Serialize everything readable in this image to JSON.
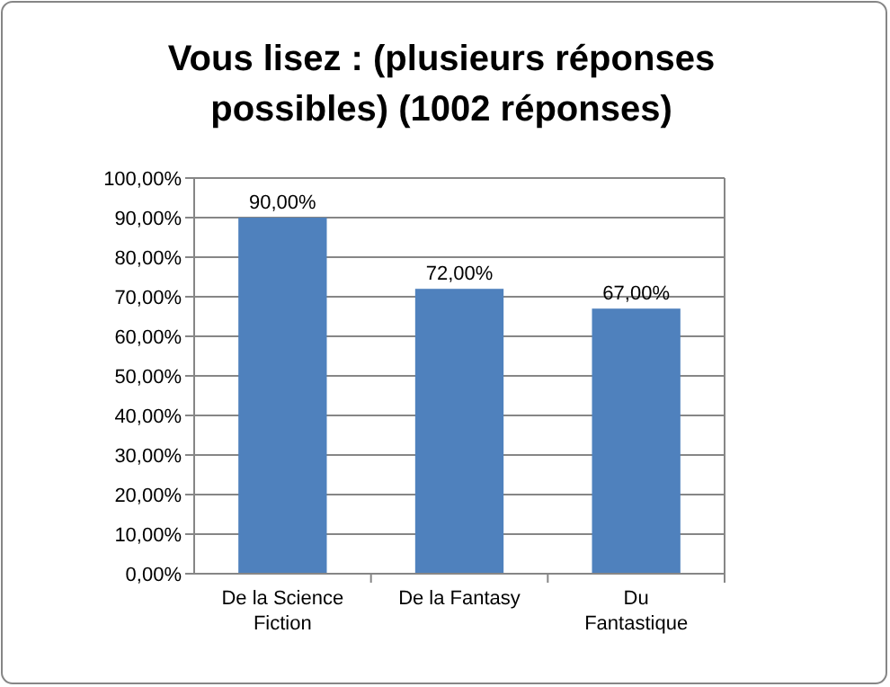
{
  "chart_data": {
    "type": "bar",
    "title": "Vous lisez : (plusieurs réponses possibles) (1002 réponses)",
    "categories": [
      "De la Science Fiction",
      "De la Fantasy",
      "Du Fantastique"
    ],
    "values": [
      90,
      72,
      67
    ],
    "value_labels": [
      "90,00%",
      "72,00%",
      "67,00%"
    ],
    "color": "#4f81bd",
    "ylim": [
      0,
      100
    ],
    "yticks": [
      {
        "value": 0,
        "label": "0,00%"
      },
      {
        "value": 10,
        "label": "10,00%"
      },
      {
        "value": 20,
        "label": "20,00%"
      },
      {
        "value": 30,
        "label": "30,00%"
      },
      {
        "value": 40,
        "label": "40,00%"
      },
      {
        "value": 50,
        "label": "50,00%"
      },
      {
        "value": 60,
        "label": "60,00%"
      },
      {
        "value": 70,
        "label": "70,00%"
      },
      {
        "value": 80,
        "label": "80,00%"
      },
      {
        "value": 90,
        "label": "90,00%"
      },
      {
        "value": 100,
        "label": "100,00%"
      }
    ],
    "grid": "y"
  }
}
